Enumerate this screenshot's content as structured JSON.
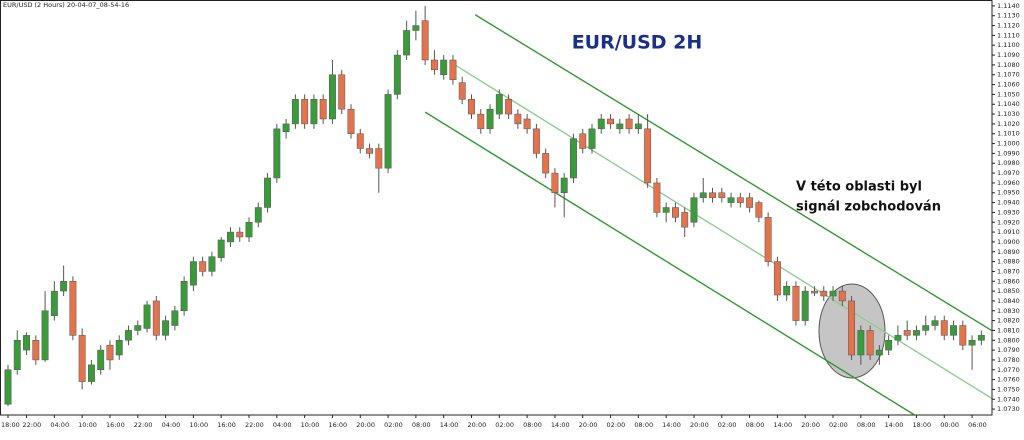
{
  "chart_data": {
    "type": "candlestick",
    "header": "EUR/USD (2 Hours) 20-04-07_08-54-16",
    "title": "EUR/USD  2H",
    "annotations": [
      "V této oblasti byl",
      "signál zobchodován"
    ],
    "up_color": "#3b9b3b",
    "down_color": "#e2734c",
    "categories": [
      "18:00",
      null,
      "22:00",
      null,
      null,
      "04:00",
      null,
      null,
      "10:00",
      null,
      null,
      "16:00",
      null,
      null,
      "22:00",
      null,
      null,
      "04:00",
      null,
      null,
      "10:00",
      null,
      null,
      "16:00",
      null,
      null,
      "22:00",
      null,
      null,
      "04:00",
      null,
      null,
      "10:00",
      null,
      null,
      "16:00",
      null,
      null,
      "20:00",
      null,
      null,
      "02:00",
      null,
      null,
      "08:00",
      null,
      null,
      "14:00",
      null,
      null,
      "20:00",
      null,
      null,
      "02:00",
      null,
      null,
      "08:00",
      null,
      null,
      "14:00",
      null,
      null,
      "20:00",
      null,
      null,
      "02:00",
      null,
      null,
      "08:00",
      null,
      null,
      "14:00",
      null,
      null,
      "20:00",
      null,
      null,
      "02:00",
      null,
      null,
      "08:00",
      null,
      null,
      "14:00",
      null,
      null,
      "20:00",
      null,
      null,
      "02:00",
      null,
      null,
      "08:00",
      null,
      null,
      "14:00",
      null,
      null,
      "18:00",
      null,
      null,
      "00:00",
      null,
      null,
      "06:00",
      null
    ],
    "candles": [
      [
        1.0735,
        1.0775,
        1.0733,
        1.077
      ],
      [
        1.077,
        1.081,
        1.0765,
        1.08
      ],
      [
        1.079,
        1.0808,
        1.0785,
        1.0805
      ],
      [
        1.08,
        1.0805,
        1.0775,
        1.078
      ],
      [
        1.078,
        1.085,
        1.0778,
        1.083
      ],
      [
        1.0825,
        1.086,
        1.082,
        1.085
      ],
      [
        1.085,
        1.0876,
        1.0845,
        1.086
      ],
      [
        1.086,
        1.0865,
        1.08,
        1.0805
      ],
      [
        1.0805,
        1.0812,
        1.075,
        1.0758
      ],
      [
        1.0758,
        1.078,
        1.0755,
        1.0775
      ],
      [
        1.077,
        1.0795,
        1.0765,
        1.079
      ],
      [
        1.0795,
        1.08,
        1.077,
        1.078
      ],
      [
        1.0785,
        1.0805,
        1.078,
        1.08
      ],
      [
        1.08,
        1.0815,
        1.0795,
        1.081
      ],
      [
        1.081,
        1.082,
        1.0805,
        1.0815
      ],
      [
        1.0812,
        1.084,
        1.0808,
        1.0836
      ],
      [
        1.084,
        1.0845,
        1.08,
        1.0805
      ],
      [
        1.0805,
        1.0825,
        1.08,
        1.082
      ],
      [
        1.0815,
        1.0835,
        1.081,
        1.083
      ],
      [
        1.083,
        1.0865,
        1.0825,
        1.086
      ],
      [
        1.0856,
        1.0885,
        1.085,
        1.088
      ],
      [
        1.088,
        1.0885,
        1.0865,
        1.087
      ],
      [
        1.087,
        1.089,
        1.0865,
        1.0885
      ],
      [
        1.0884,
        1.0905,
        1.088,
        1.0902
      ],
      [
        1.09,
        1.0915,
        1.0895,
        1.091
      ],
      [
        1.091,
        1.0915,
        1.09,
        1.0905
      ],
      [
        1.0905,
        1.0925,
        1.09,
        1.092
      ],
      [
        1.092,
        1.094,
        1.0915,
        1.0935
      ],
      [
        1.0935,
        1.097,
        1.093,
        1.0965
      ],
      [
        1.0965,
        1.102,
        1.096,
        1.1015
      ],
      [
        1.1012,
        1.1025,
        1.1005,
        1.102
      ],
      [
        1.102,
        1.105,
        1.1015,
        1.1045
      ],
      [
        1.1045,
        1.105,
        1.1015,
        1.102
      ],
      [
        1.102,
        1.105,
        1.1015,
        1.1045
      ],
      [
        1.1045,
        1.105,
        1.102,
        1.1025
      ],
      [
        1.1025,
        1.1085,
        1.102,
        1.107
      ],
      [
        1.107,
        1.1075,
        1.103,
        1.1035
      ],
      [
        1.1035,
        1.104,
        1.1005,
        1.101
      ],
      [
        1.101,
        1.1015,
        1.099,
        1.0995
      ],
      [
        1.0995,
        1.1,
        1.0985,
        1.099
      ],
      [
        1.0995,
        1.1,
        1.095,
        1.0975
      ],
      [
        1.0975,
        1.1055,
        1.097,
        1.105
      ],
      [
        1.105,
        1.1095,
        1.1045,
        1.109
      ],
      [
        1.109,
        1.1125,
        1.1085,
        1.1115
      ],
      [
        1.1115,
        1.1135,
        1.1105,
        1.112
      ],
      [
        1.1125,
        1.114,
        1.108,
        1.1085
      ],
      [
        1.1085,
        1.1095,
        1.107,
        1.1075
      ],
      [
        1.107,
        1.109,
        1.1065,
        1.1085
      ],
      [
        1.1085,
        1.109,
        1.106,
        1.1065
      ],
      [
        1.1062,
        1.1068,
        1.104,
        1.1045
      ],
      [
        1.1045,
        1.105,
        1.1025,
        1.103
      ],
      [
        1.103,
        1.1035,
        1.101,
        1.1015
      ],
      [
        1.1015,
        1.104,
        1.101,
        1.1035
      ],
      [
        1.103,
        1.1055,
        1.1025,
        1.105
      ],
      [
        1.1045,
        1.105,
        1.1025,
        1.103
      ],
      [
        1.103,
        1.1035,
        1.1015,
        1.102
      ],
      [
        1.1025,
        1.103,
        1.101,
        1.1015
      ],
      [
        1.1015,
        1.102,
        1.0985,
        1.099
      ],
      [
        1.099,
        1.0995,
        1.0965,
        1.097
      ],
      [
        1.097,
        1.0975,
        1.0935,
        1.095
      ],
      [
        1.095,
        1.097,
        1.0925,
        1.0965
      ],
      [
        1.0965,
        1.101,
        1.096,
        1.1005
      ],
      [
        1.101,
        1.1015,
        1.099,
        1.0995
      ],
      [
        1.0995,
        1.102,
        1.099,
        1.1015
      ],
      [
        1.1015,
        1.103,
        1.101,
        1.1025
      ],
      [
        1.1025,
        1.103,
        1.1015,
        1.102
      ],
      [
        1.1015,
        1.1025,
        1.101,
        1.102
      ],
      [
        1.1025,
        1.103,
        1.101,
        1.1015
      ],
      [
        1.1015,
        1.103,
        1.101,
        1.102
      ],
      [
        1.1015,
        1.103,
        1.0955,
        1.096
      ],
      [
        1.096,
        1.0965,
        1.0925,
        1.093
      ],
      [
        1.093,
        1.094,
        1.092,
        1.0935
      ],
      [
        1.0935,
        1.094,
        1.092,
        1.0925
      ],
      [
        1.093,
        1.0935,
        1.0905,
        1.0915
      ],
      [
        1.092,
        1.095,
        1.0915,
        1.0945
      ],
      [
        1.0945,
        1.0965,
        1.094,
        1.095
      ],
      [
        1.095,
        1.0955,
        1.094,
        1.0945
      ],
      [
        1.095,
        1.0955,
        1.094,
        1.0945
      ],
      [
        1.094,
        1.095,
        1.0935,
        1.0945
      ],
      [
        1.0945,
        1.095,
        1.0935,
        1.094
      ],
      [
        1.0945,
        1.095,
        1.093,
        1.0935
      ],
      [
        1.094,
        1.0942,
        1.092,
        1.0925
      ],
      [
        1.0925,
        1.093,
        1.0875,
        1.088
      ],
      [
        1.088,
        1.0885,
        1.084,
        1.0846
      ],
      [
        1.0846,
        1.086,
        1.084,
        1.0855
      ],
      [
        1.0855,
        1.086,
        1.0815,
        1.082
      ],
      [
        1.082,
        1.0855,
        1.0815,
        1.085
      ],
      [
        1.085,
        1.0855,
        1.0845,
        1.0848
      ],
      [
        1.085,
        1.0855,
        1.084,
        1.0845
      ],
      [
        1.0845,
        1.0855,
        1.084,
        1.085
      ],
      [
        1.085,
        1.0855,
        1.0835,
        1.084
      ],
      [
        1.084,
        1.0845,
        1.078,
        1.0785
      ],
      [
        1.0785,
        1.0815,
        1.0775,
        1.081
      ],
      [
        1.081,
        1.0815,
        1.078,
        1.0785
      ],
      [
        1.0785,
        1.0795,
        1.0775,
        1.079
      ],
      [
        1.079,
        1.0805,
        1.0785,
        1.08
      ],
      [
        1.08,
        1.0815,
        1.0795,
        1.0805
      ],
      [
        1.081,
        1.082,
        1.08,
        1.0805
      ],
      [
        1.0805,
        1.0815,
        1.08,
        1.081
      ],
      [
        1.081,
        1.0825,
        1.0805,
        1.0815
      ],
      [
        1.0815,
        1.0825,
        1.081,
        1.082
      ],
      [
        1.082,
        1.0825,
        1.08,
        1.0805
      ],
      [
        1.0805,
        1.082,
        1.08,
        1.0815
      ],
      [
        1.0815,
        1.082,
        1.079,
        1.0795
      ],
      [
        1.0795,
        1.0805,
        1.077,
        1.08
      ],
      [
        1.08,
        1.081,
        1.0795,
        1.0805
      ]
    ],
    "channel": [
      {
        "color": "#2f9a2f",
        "points": [
          [
            50.4,
            1.1131
          ],
          [
            106.1,
            1.081
          ]
        ]
      },
      {
        "color": "#8fce8f",
        "points": [
          [
            47.7,
            1.1083
          ],
          [
            106.1,
            1.0741
          ]
        ]
      },
      {
        "color": "#2f9a2f",
        "points": [
          [
            45.0,
            1.1032
          ],
          [
            97.8,
            1.0724
          ]
        ]
      }
    ],
    "ylim": [
      1.0724,
      1.1146
    ],
    "yticks": [
      {
        "value": 1.073,
        "label": "1.0730"
      },
      {
        "value": 1.074,
        "label": "1.0740"
      },
      {
        "value": 1.075,
        "label": "1.0750"
      },
      {
        "value": 1.076,
        "label": "1.0760"
      },
      {
        "value": 1.077,
        "label": "1.0770"
      },
      {
        "value": 1.078,
        "label": "1.0780"
      },
      {
        "value": 1.079,
        "label": "1.0790"
      },
      {
        "value": 1.08,
        "label": "1.0800"
      },
      {
        "value": 1.081,
        "label": "1.0810"
      },
      {
        "value": 1.082,
        "label": "1.0820"
      },
      {
        "value": 1.083,
        "label": "1.0830"
      },
      {
        "value": 1.084,
        "label": "1.0840"
      },
      {
        "value": 1.085,
        "label": "1.0850"
      },
      {
        "value": 1.086,
        "label": "1.0860"
      },
      {
        "value": 1.087,
        "label": "1.0870"
      },
      {
        "value": 1.088,
        "label": "1.0880"
      },
      {
        "value": 1.089,
        "label": "1.0890"
      },
      {
        "value": 1.09,
        "label": "1.0900"
      },
      {
        "value": 1.091,
        "label": "1.0910"
      },
      {
        "value": 1.092,
        "label": "1.0920"
      },
      {
        "value": 1.093,
        "label": "1.0930"
      },
      {
        "value": 1.094,
        "label": "1.0940"
      },
      {
        "value": 1.095,
        "label": "1.0950"
      },
      {
        "value": 1.096,
        "label": "1.0960"
      },
      {
        "value": 1.097,
        "label": "1.0970"
      },
      {
        "value": 1.098,
        "label": "1.0980"
      },
      {
        "value": 1.099,
        "label": "1.0990"
      },
      {
        "value": 1.1,
        "label": "1.1000"
      },
      {
        "value": 1.101,
        "label": "1.1010"
      },
      {
        "value": 1.102,
        "label": "1.1020"
      },
      {
        "value": 1.103,
        "label": "1.1030"
      },
      {
        "value": 1.104,
        "label": "1.1040"
      },
      {
        "value": 1.105,
        "label": "1.1050"
      },
      {
        "value": 1.106,
        "label": "1.1060"
      },
      {
        "value": 1.107,
        "label": "1.1070"
      },
      {
        "value": 1.108,
        "label": "1.1080"
      },
      {
        "value": 1.109,
        "label": "1.1090"
      },
      {
        "value": 1.11,
        "label": "1.1100"
      },
      {
        "value": 1.111,
        "label": "1.1110"
      },
      {
        "value": 1.112,
        "label": "1.1120"
      },
      {
        "value": 1.113,
        "label": "1.1130"
      },
      {
        "value": 1.114,
        "label": "1.1140"
      }
    ]
  }
}
